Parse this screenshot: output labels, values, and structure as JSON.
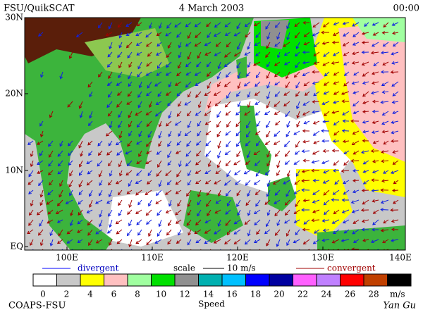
{
  "header": {
    "source": "FSU/QuikSCAT",
    "date": "4 March 2003",
    "time": "00:00"
  },
  "map": {
    "lat_labels": [
      "30N",
      "20N",
      "10N",
      "EQ"
    ],
    "lon_labels": [
      "100E",
      "110E",
      "120E",
      "130E",
      "140E"
    ]
  },
  "legend": {
    "divergent": "divergent",
    "scale": "scale",
    "scale_value": "10 m/s",
    "convergent": "convergent"
  },
  "colorbar": {
    "labels": [
      0,
      2,
      4,
      6,
      8,
      10,
      12,
      14,
      16,
      18,
      20,
      22,
      24,
      26,
      28
    ],
    "unit": "m/s",
    "title": "Speed"
  },
  "footer": {
    "left": "COAPS-FSU",
    "right": "Yan Gu"
  }
}
